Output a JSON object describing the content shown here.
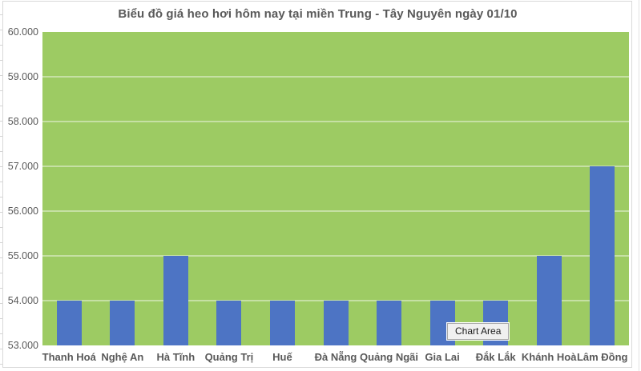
{
  "chart_data": {
    "type": "bar",
    "title": "Biểu đồ giá heo hơi hôm nay tại miền Trung - Tây Nguyên ngày 01/10",
    "categories": [
      "Thanh Hoá",
      "Nghệ An",
      "Hà Tĩnh",
      "Quảng Trị",
      "Huế",
      "Đà Nẵng",
      "Quảng Ngãi",
      "Gia Lai",
      "Đắk Lắk",
      "Khánh Hoà",
      "Lâm Đồng"
    ],
    "values": [
      54000,
      54000,
      55000,
      54000,
      54000,
      54000,
      54000,
      54000,
      54000,
      55000,
      57000
    ],
    "xlabel": "",
    "ylabel": "",
    "ylim": [
      53000,
      60000
    ],
    "ytick_step": 1000,
    "ytick_labels": [
      "60.000",
      "59.000",
      "58.000",
      "57.000",
      "56.000",
      "55.000",
      "54.000",
      "53.000"
    ],
    "grid": true,
    "legend": "none",
    "colors": {
      "bar": "#4d74c4",
      "plot_background": "#9dcb63",
      "gridline": "#c6e0a4",
      "axis_text": "#595959",
      "title_text": "#595959"
    }
  },
  "tooltip": {
    "label": "Chart Area"
  }
}
